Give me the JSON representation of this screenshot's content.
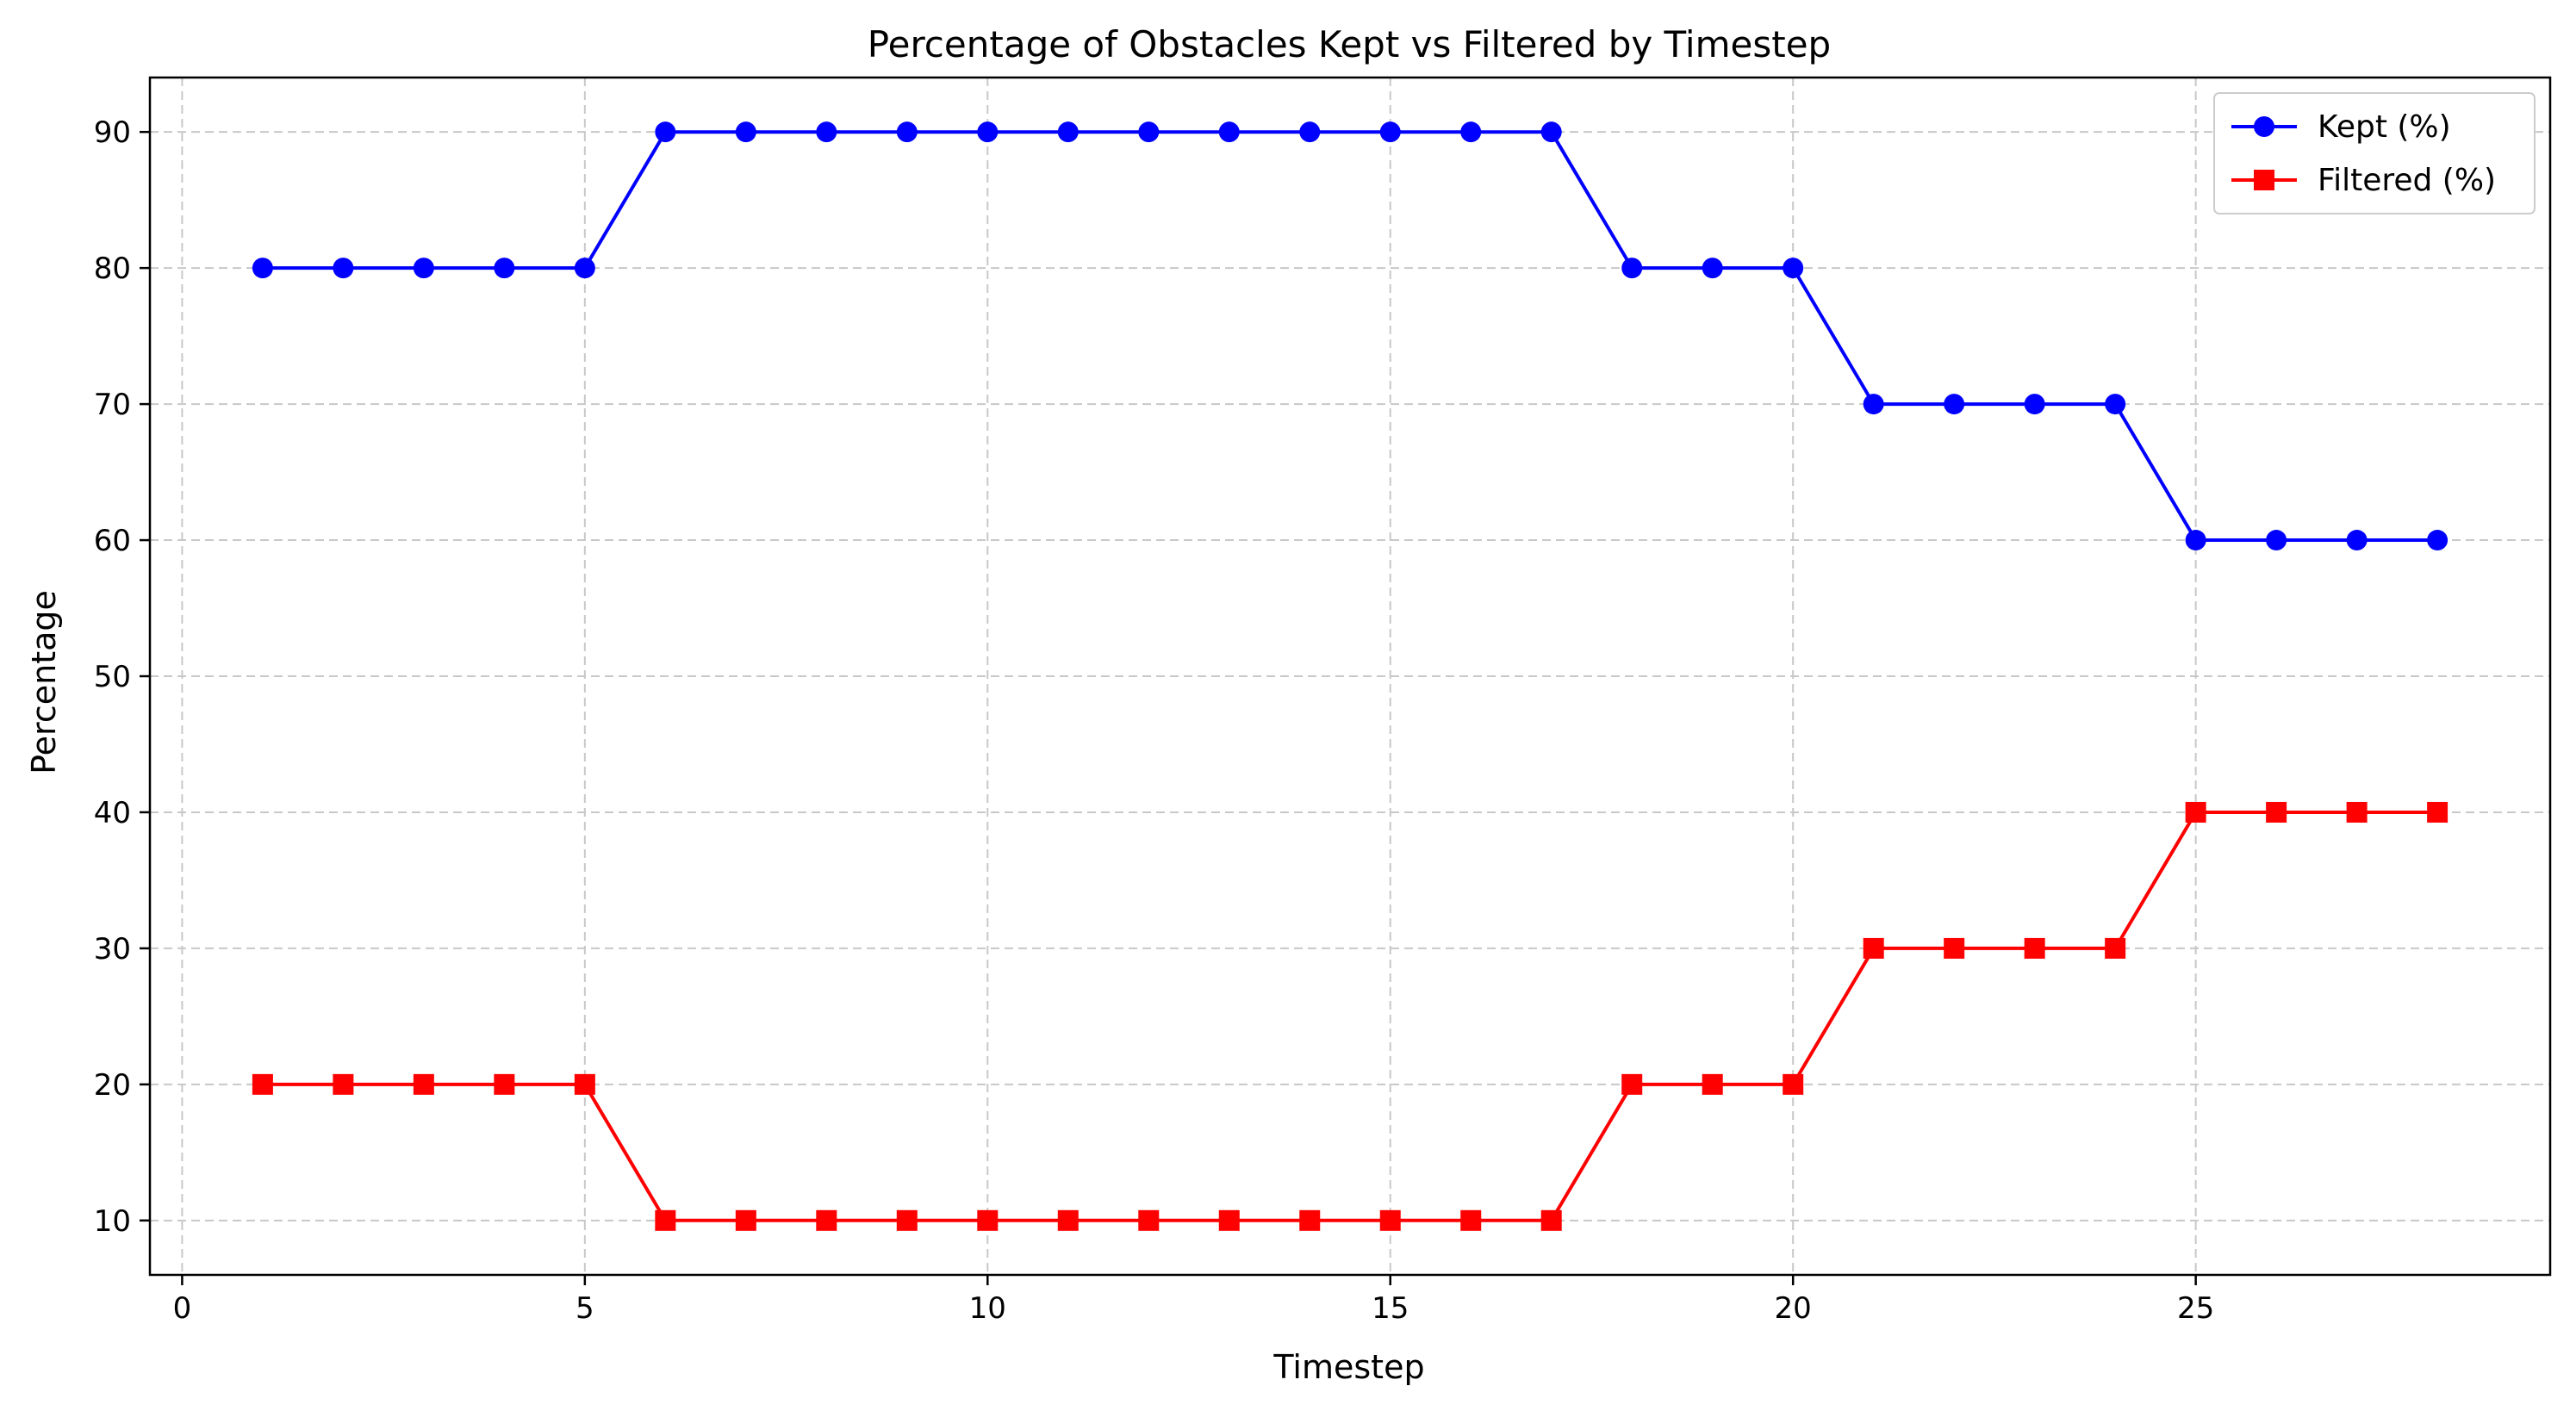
{
  "chart_data": {
    "type": "line",
    "title": "Percentage of Obstacles Kept vs Filtered by Timestep",
    "xlabel": "Timestep",
    "ylabel": "Percentage",
    "xlim": [
      -0.4,
      29.4
    ],
    "ylim": [
      6,
      94
    ],
    "xticks": [
      0,
      5,
      10,
      15,
      20,
      25
    ],
    "yticks": [
      10,
      20,
      30,
      40,
      50,
      60,
      70,
      80,
      90
    ],
    "grid": true,
    "legend_position": "top-right",
    "x": [
      1,
      2,
      3,
      4,
      5,
      6,
      7,
      8,
      9,
      10,
      11,
      12,
      13,
      14,
      15,
      16,
      17,
      18,
      19,
      20,
      21,
      22,
      23,
      24,
      25,
      26,
      27,
      28
    ],
    "series": [
      {
        "name": "Kept (%)",
        "color": "#0000ff",
        "marker": "circle",
        "values": [
          80,
          80,
          80,
          80,
          80,
          90,
          90,
          90,
          90,
          90,
          90,
          90,
          90,
          90,
          90,
          90,
          90,
          80,
          80,
          80,
          70,
          70,
          70,
          70,
          60,
          60,
          60,
          60
        ]
      },
      {
        "name": "Filtered (%)",
        "color": "#ff0000",
        "marker": "square",
        "values": [
          20,
          20,
          20,
          20,
          20,
          10,
          10,
          10,
          10,
          10,
          10,
          10,
          10,
          10,
          10,
          10,
          10,
          20,
          20,
          20,
          30,
          30,
          30,
          30,
          40,
          40,
          40,
          40
        ]
      }
    ]
  }
}
